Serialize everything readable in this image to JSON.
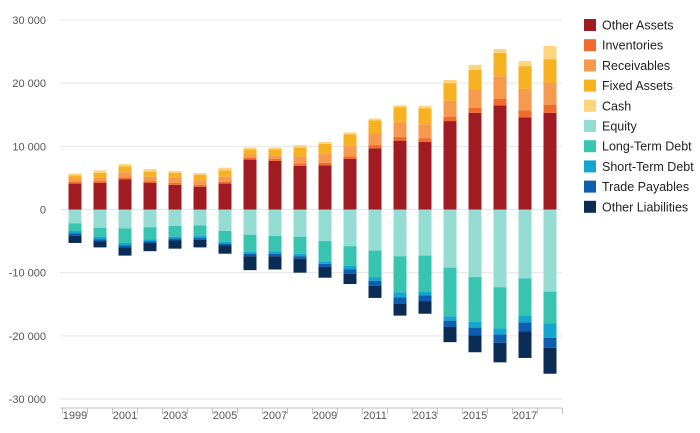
{
  "chart_data": {
    "type": "bar",
    "stacked": true,
    "categories": [
      "1999",
      "2000",
      "2001",
      "2002",
      "2003",
      "2004",
      "2005",
      "2006",
      "2007",
      "2008",
      "2009",
      "2010",
      "2011",
      "2012",
      "2013",
      "2014",
      "2015",
      "2016",
      "2017",
      "2018"
    ],
    "x_tick_labels": [
      "1999",
      "2001",
      "2003",
      "2005",
      "2007",
      "2009",
      "2011",
      "2013",
      "2015",
      "2017"
    ],
    "y_tick_labels": [
      "30 000",
      "20 000",
      "10 000",
      "0",
      "-10 000",
      "-20 000",
      "-30 000"
    ],
    "y_ticks": [
      30000,
      20000,
      10000,
      0,
      -10000,
      -20000,
      -30000
    ],
    "ylim": [
      -30000,
      30000
    ],
    "grid": true,
    "legend_position": "right",
    "series": [
      {
        "name": "Other Assets",
        "color": "#A01C22",
        "values": [
          4100,
          4200,
          4800,
          4200,
          3900,
          3600,
          4100,
          7900,
          7700,
          6900,
          7000,
          8000,
          9700,
          10900,
          10700,
          14000,
          15300,
          16500,
          14600,
          15300
        ]
      },
      {
        "name": "Inventories",
        "color": "#F26A2E",
        "values": [
          300,
          300,
          300,
          300,
          300,
          300,
          300,
          300,
          300,
          400,
          400,
          400,
          500,
          600,
          600,
          700,
          800,
          1000,
          1100,
          1300
        ]
      },
      {
        "name": "Receivables",
        "color": "#F79A4D",
        "values": [
          500,
          600,
          800,
          700,
          800,
          700,
          800,
          500,
          600,
          1100,
          1400,
          1700,
          1900,
          2300,
          2200,
          2500,
          2900,
          3600,
          3400,
          3500
        ]
      },
      {
        "name": "Fixed Assets",
        "color": "#F6B222",
        "values": [
          500,
          700,
          900,
          800,
          800,
          900,
          1000,
          800,
          900,
          1400,
          1600,
          1800,
          2000,
          2400,
          2500,
          2800,
          3100,
          3700,
          3600,
          3700
        ]
      },
      {
        "name": "Cash",
        "color": "#FDD57E",
        "values": [
          300,
          400,
          400,
          400,
          300,
          300,
          400,
          300,
          300,
          400,
          300,
          300,
          300,
          300,
          400,
          500,
          800,
          600,
          800,
          2100
        ]
      },
      {
        "name": "Equity",
        "color": "#95DDD3",
        "values": [
          -2200,
          -2900,
          -3000,
          -2800,
          -2600,
          -2500,
          -3400,
          -4000,
          -4200,
          -4300,
          -5000,
          -5800,
          -6500,
          -7400,
          -7300,
          -9200,
          -10700,
          -12300,
          -10900,
          -13000
        ]
      },
      {
        "name": "Long-Term Debt",
        "color": "#38C4B0",
        "values": [
          -1200,
          -1400,
          -2300,
          -1900,
          -1700,
          -1700,
          -1700,
          -2700,
          -2400,
          -2700,
          -3200,
          -3100,
          -4200,
          -5700,
          -5700,
          -7700,
          -7100,
          -6500,
          -5900,
          -5000
        ]
      },
      {
        "name": "Short-Term Debt",
        "color": "#15A6D0",
        "values": [
          -400,
          -400,
          -400,
          -300,
          -300,
          -300,
          -300,
          -300,
          -400,
          -400,
          -400,
          -600,
          -600,
          -800,
          -600,
          -700,
          -900,
          -1000,
          -1100,
          -2300
        ]
      },
      {
        "name": "Trade Payables",
        "color": "#0E5DAE",
        "values": [
          -400,
          -300,
          -300,
          -300,
          -300,
          -300,
          -300,
          -400,
          -400,
          -400,
          -500,
          -700,
          -800,
          -1000,
          -900,
          -1000,
          -1200,
          -1300,
          -1400,
          -1600
        ]
      },
      {
        "name": "Other Liabilities",
        "color": "#0B2D55",
        "values": [
          -1100,
          -1000,
          -1300,
          -1300,
          -1300,
          -1200,
          -1300,
          -2200,
          -2100,
          -2200,
          -1700,
          -1600,
          -1900,
          -1900,
          -2000,
          -2400,
          -2700,
          -3100,
          -4200,
          -4100
        ]
      }
    ]
  }
}
